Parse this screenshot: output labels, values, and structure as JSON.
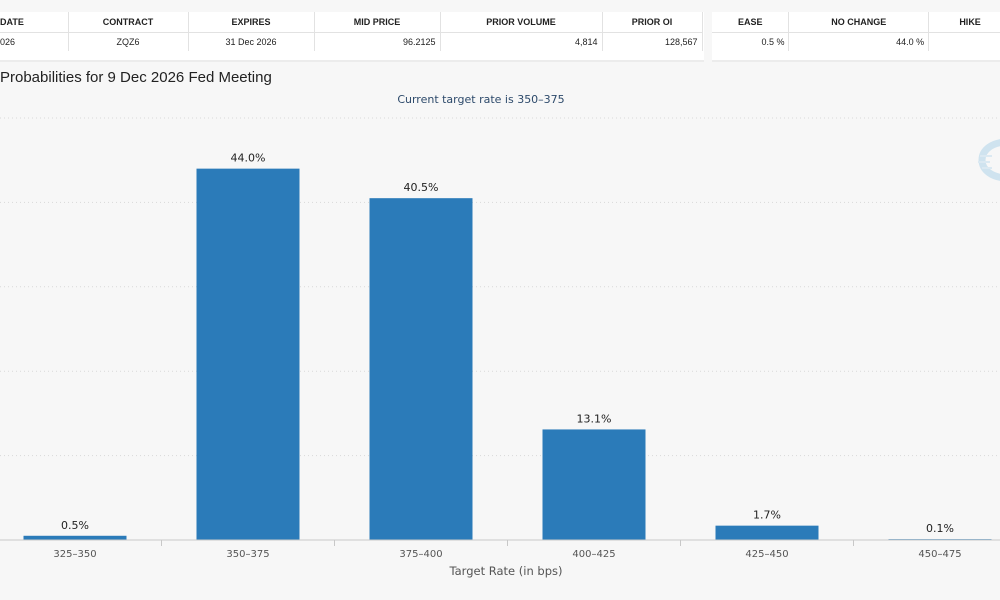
{
  "table_left": {
    "headers": [
      "DATE",
      "CONTRACT",
      "EXPIRES",
      "MID PRICE",
      "PRIOR VOLUME",
      "PRIOR OI"
    ],
    "row": [
      "026",
      "ZQZ6",
      "31 Dec 2026",
      "96.2125",
      "4,814",
      "128,567"
    ]
  },
  "table_right": {
    "headers": [
      "EASE",
      "NO CHANGE",
      "HIKE"
    ],
    "row": [
      "0.5 %",
      "44.0 %",
      ""
    ]
  },
  "chart_data": {
    "type": "bar",
    "title": "Probabilities for 9 Dec 2026 Fed Meeting",
    "subtitle": "Current target rate is 350–375",
    "xlabel": "Target Rate (in bps)",
    "ylabel": "",
    "categories": [
      "325–350",
      "350–375",
      "375–400",
      "400–425",
      "425–450",
      "450–475"
    ],
    "values": [
      0.5,
      44.0,
      40.5,
      13.1,
      1.7,
      0.1
    ],
    "value_labels": [
      "0.5%",
      "44.0%",
      "40.5%",
      "13.1%",
      "1.7%",
      "0.1%"
    ],
    "ylim": [
      0,
      50
    ],
    "grid": true,
    "bar_color": "#2b7bb9"
  }
}
